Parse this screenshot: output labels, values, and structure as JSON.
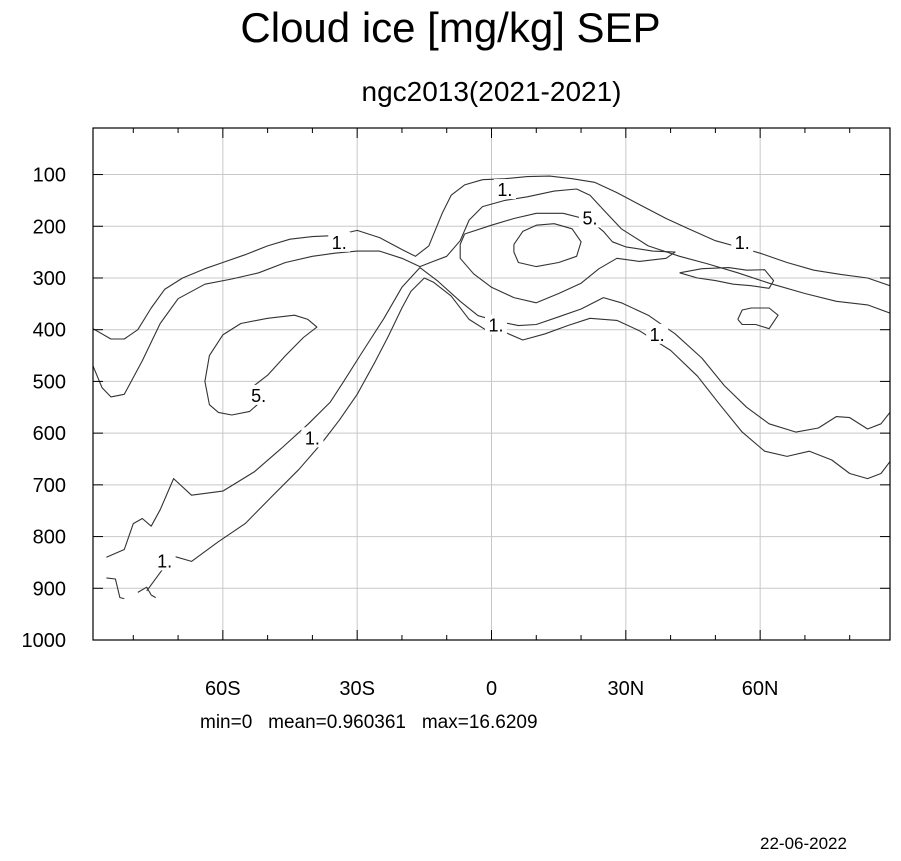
{
  "title": "Cloud ice [mg/kg] SEP",
  "subtitle": "ngc2013(2021-2021)",
  "stats": {
    "min_label": "min=0",
    "mean_label": "mean=0.960361",
    "max_label": "max=16.6209"
  },
  "date": "22-06-2022",
  "chart_data": {
    "type": "contour",
    "title": "Cloud ice [mg/kg] SEP",
    "subtitle": "ngc2013(2021-2021)",
    "xlim": [
      -89,
      89
    ],
    "ylim": [
      1000,
      10
    ],
    "x_ticks": [
      {
        "value": -60,
        "label": "60S"
      },
      {
        "value": -30,
        "label": "30S"
      },
      {
        "value": 0,
        "label": "0"
      },
      {
        "value": 30,
        "label": "30N"
      },
      {
        "value": 60,
        "label": "60N"
      }
    ],
    "y_ticks": [
      {
        "value": 100,
        "label": "100"
      },
      {
        "value": 200,
        "label": "200"
      },
      {
        "value": 300,
        "label": "300"
      },
      {
        "value": 400,
        "label": "400"
      },
      {
        "value": 500,
        "label": "500"
      },
      {
        "value": 600,
        "label": "600"
      },
      {
        "value": 700,
        "label": "700"
      },
      {
        "value": 800,
        "label": "800"
      },
      {
        "value": 900,
        "label": "900"
      },
      {
        "value": 1000,
        "label": "1000"
      }
    ],
    "grid": true,
    "contour_levels": [
      1,
      5
    ],
    "contours": [
      {
        "level": 1,
        "points": [
          [
            -89,
            398
          ],
          [
            -85,
            418
          ],
          [
            -82,
            418
          ],
          [
            -79,
            400
          ],
          [
            -76,
            358
          ],
          [
            -73,
            322
          ],
          [
            -69,
            300
          ],
          [
            -64,
            282
          ],
          [
            -60,
            270
          ],
          [
            -55,
            255
          ],
          [
            -50,
            238
          ],
          [
            -45,
            225
          ],
          [
            -40,
            220
          ],
          [
            -35,
            218
          ],
          [
            -30,
            208
          ],
          [
            -25,
            222
          ],
          [
            -20,
            245
          ],
          [
            -17,
            258
          ],
          [
            -14,
            238
          ],
          [
            -11,
            175
          ],
          [
            -9,
            140
          ],
          [
            -6,
            120
          ],
          [
            -2,
            110
          ],
          [
            3,
            108
          ],
          [
            8,
            104
          ],
          [
            13,
            103
          ],
          [
            18,
            108
          ],
          [
            23,
            115
          ],
          [
            28,
            135
          ],
          [
            33,
            158
          ],
          [
            39,
            185
          ],
          [
            44,
            205
          ],
          [
            50,
            228
          ],
          [
            55,
            240
          ],
          [
            60,
            252
          ],
          [
            66,
            270
          ],
          [
            72,
            285
          ],
          [
            78,
            293
          ],
          [
            84,
            300
          ],
          [
            89,
            315
          ]
        ]
      },
      {
        "level": 1,
        "points": [
          [
            -89,
            470
          ],
          [
            -87,
            512
          ],
          [
            -85,
            530
          ],
          [
            -82,
            525
          ],
          [
            -78,
            460
          ],
          [
            -74,
            388
          ],
          [
            -70,
            340
          ],
          [
            -64,
            312
          ],
          [
            -58,
            302
          ],
          [
            -52,
            290
          ],
          [
            -46,
            270
          ],
          [
            -40,
            258
          ],
          [
            -35,
            252
          ],
          [
            -30,
            248
          ],
          [
            -25,
            248
          ],
          [
            -20,
            262
          ],
          [
            -16,
            278
          ],
          [
            -13,
            268
          ],
          [
            -10,
            258
          ],
          [
            -7,
            228
          ],
          [
            -5,
            188
          ],
          [
            -2,
            162
          ],
          [
            3,
            150
          ],
          [
            8,
            143
          ],
          [
            14,
            132
          ],
          [
            19,
            128
          ],
          [
            22,
            140
          ],
          [
            25,
            168
          ],
          [
            29,
            205
          ],
          [
            35,
            238
          ],
          [
            42,
            258
          ],
          [
            48,
            272
          ],
          [
            55,
            290
          ],
          [
            62,
            310
          ],
          [
            70,
            330
          ],
          [
            77,
            345
          ],
          [
            84,
            352
          ],
          [
            89,
            368
          ]
        ]
      },
      {
        "level": 1,
        "points": [
          [
            -86,
            840
          ],
          [
            -82,
            825
          ],
          [
            -80,
            775
          ],
          [
            -78,
            765
          ],
          [
            -76,
            780
          ],
          [
            -74,
            748
          ],
          [
            -71,
            688
          ],
          [
            -67,
            720
          ],
          [
            -60,
            712
          ],
          [
            -53,
            675
          ],
          [
            -47,
            630
          ],
          [
            -41,
            583
          ],
          [
            -36,
            540
          ],
          [
            -33,
            500
          ],
          [
            -29,
            445
          ],
          [
            -24,
            378
          ],
          [
            -20,
            318
          ],
          [
            -16,
            280
          ],
          [
            -12,
            306
          ],
          [
            -7,
            345
          ],
          [
            -3,
            373
          ],
          [
            2,
            385
          ],
          [
            6,
            392
          ],
          [
            10,
            390
          ],
          [
            15,
            375
          ],
          [
            20,
            360
          ],
          [
            25,
            338
          ],
          [
            29,
            348
          ],
          [
            35,
            372
          ],
          [
            41,
            408
          ],
          [
            47,
            455
          ],
          [
            52,
            508
          ],
          [
            57,
            550
          ],
          [
            62,
            582
          ],
          [
            68,
            598
          ],
          [
            73,
            590
          ],
          [
            77,
            568
          ],
          [
            80,
            570
          ],
          [
            84,
            592
          ],
          [
            87,
            582
          ],
          [
            89,
            560
          ]
        ]
      },
      {
        "level": 1,
        "points": [
          [
            -77,
            905
          ],
          [
            -73,
            858
          ],
          [
            -71,
            838
          ],
          [
            -67,
            848
          ],
          [
            -61,
            810
          ],
          [
            -55,
            775
          ],
          [
            -49,
            722
          ],
          [
            -43,
            670
          ],
          [
            -38,
            620
          ],
          [
            -34,
            575
          ],
          [
            -30,
            525
          ],
          [
            -26,
            462
          ],
          [
            -23,
            412
          ],
          [
            -20,
            358
          ],
          [
            -18,
            326
          ],
          [
            -15,
            300
          ],
          [
            -13,
            308
          ],
          [
            -9,
            335
          ],
          [
            -5,
            380
          ],
          [
            -1,
            402
          ],
          [
            3,
            405
          ],
          [
            7,
            420
          ],
          [
            12,
            408
          ],
          [
            17,
            392
          ],
          [
            22,
            378
          ],
          [
            28,
            382
          ],
          [
            33,
            402
          ],
          [
            40,
            440
          ],
          [
            46,
            490
          ],
          [
            51,
            545
          ],
          [
            56,
            598
          ],
          [
            61,
            635
          ],
          [
            66,
            645
          ],
          [
            71,
            635
          ],
          [
            76,
            652
          ],
          [
            80,
            678
          ],
          [
            84,
            688
          ],
          [
            87,
            678
          ],
          [
            89,
            655
          ]
        ]
      },
      {
        "level": 1,
        "points": [
          [
            -86,
            880
          ],
          [
            -84,
            882
          ],
          [
            -83,
            918
          ],
          [
            -82,
            920
          ]
        ]
      },
      {
        "level": 1,
        "points": [
          [
            -79,
            908
          ],
          [
            -77,
            898
          ],
          [
            -76,
            913
          ],
          [
            -75,
            918
          ]
        ]
      },
      {
        "level": 1,
        "points": [
          [
            -6,
            215
          ],
          [
            0,
            198
          ],
          [
            5,
            185
          ],
          [
            10,
            175
          ],
          [
            16,
            175
          ],
          [
            22,
            188
          ],
          [
            25,
            210
          ],
          [
            27,
            230
          ],
          [
            30,
            240
          ],
          [
            36,
            248
          ],
          [
            41,
            250
          ],
          [
            39,
            262
          ],
          [
            33,
            268
          ],
          [
            28,
            262
          ],
          [
            24,
            282
          ],
          [
            20,
            310
          ],
          [
            15,
            330
          ],
          [
            10,
            348
          ],
          [
            5,
            338
          ],
          [
            0,
            318
          ],
          [
            -4,
            292
          ],
          [
            -7,
            262
          ],
          [
            -7,
            235
          ],
          [
            -6,
            215
          ]
        ]
      },
      {
        "level": 1,
        "points": [
          [
            42,
            290
          ],
          [
            47,
            282
          ],
          [
            53,
            280
          ],
          [
            57,
            285
          ],
          [
            61,
            284
          ],
          [
            63,
            305
          ],
          [
            62,
            320
          ],
          [
            58,
            315
          ],
          [
            54,
            312
          ],
          [
            50,
            305
          ],
          [
            46,
            300
          ],
          [
            42,
            290
          ]
        ]
      },
      {
        "level": 1,
        "points": [
          [
            55,
            380
          ],
          [
            56,
            362
          ],
          [
            58,
            358
          ],
          [
            62,
            358
          ],
          [
            64,
            372
          ],
          [
            62,
            398
          ],
          [
            59,
            390
          ],
          [
            56,
            390
          ],
          [
            55,
            380
          ]
        ]
      },
      {
        "level": 5,
        "points": [
          [
            5,
            235
          ],
          [
            7,
            210
          ],
          [
            10,
            198
          ],
          [
            14,
            195
          ],
          [
            18,
            205
          ],
          [
            20,
            230
          ],
          [
            19,
            258
          ],
          [
            15,
            270
          ],
          [
            10,
            278
          ],
          [
            6,
            270
          ],
          [
            5,
            250
          ],
          [
            5,
            235
          ]
        ]
      },
      {
        "level": 5,
        "points": [
          [
            -51,
            535
          ],
          [
            -54,
            558
          ],
          [
            -58,
            565
          ],
          [
            -61,
            560
          ],
          [
            -63,
            545
          ],
          [
            -64,
            500
          ],
          [
            -63,
            450
          ],
          [
            -60,
            410
          ],
          [
            -56,
            388
          ],
          [
            -50,
            378
          ],
          [
            -44,
            372
          ],
          [
            -41,
            380
          ],
          [
            -39,
            395
          ],
          [
            -42,
            415
          ],
          [
            -46,
            450
          ],
          [
            -50,
            488
          ],
          [
            -53,
            508
          ],
          [
            -51,
            535
          ]
        ]
      }
    ],
    "contour_labels": [
      {
        "text": "1.",
        "x": -34,
        "y": 232
      },
      {
        "text": "1.",
        "x": 3,
        "y": 130
      },
      {
        "text": "5.",
        "x": 22,
        "y": 185
      },
      {
        "text": "1.",
        "x": 56,
        "y": 232
      },
      {
        "text": "1.",
        "x": 1,
        "y": 392
      },
      {
        "text": "1.",
        "x": 37,
        "y": 410
      },
      {
        "text": "5.",
        "x": -52,
        "y": 528
      },
      {
        "text": "1.",
        "x": -40,
        "y": 610
      },
      {
        "text": "1.",
        "x": -73,
        "y": 848
      }
    ]
  }
}
